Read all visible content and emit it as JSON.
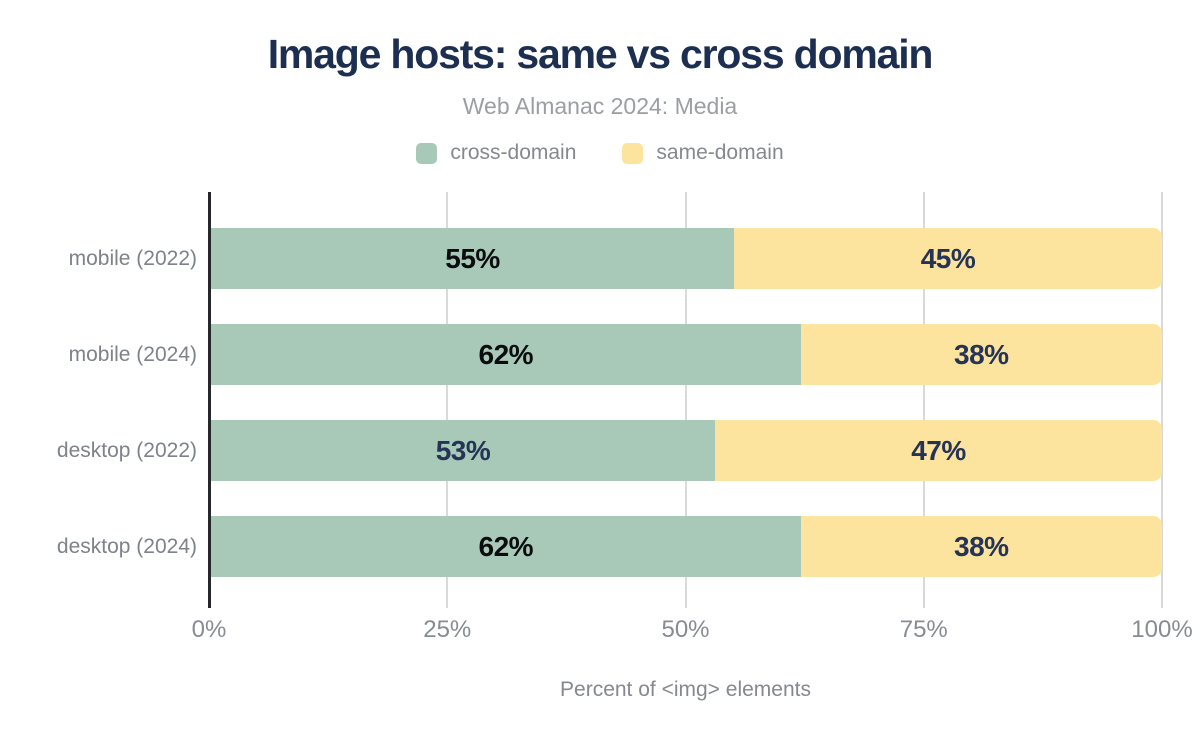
{
  "title": "Image hosts: same vs cross domain",
  "subtitle": "Web Almanac 2024: Media",
  "colors": {
    "title_navy": "#1d2f51",
    "cross_domain_green": "#a8c9b8",
    "same_domain_yellow": "#fce49f",
    "grid_gray": "#d9d9d9",
    "axis_dark": "#26272b",
    "muted_text": "#85898f",
    "value_black": "#0b0c0f",
    "value_navy": "#243356"
  },
  "legend": [
    {
      "label": "cross-domain",
      "color": "#a8c9b8"
    },
    {
      "label": "same-domain",
      "color": "#fce49f"
    }
  ],
  "chart_data": {
    "type": "bar",
    "orientation": "horizontal",
    "stacked": true,
    "title": "Image hosts: same vs cross domain",
    "subtitle": "Web Almanac 2024: Media",
    "categories": [
      "mobile (2022)",
      "mobile (2024)",
      "desktop (2022)",
      "desktop (2024)"
    ],
    "series": [
      {
        "name": "cross-domain",
        "color": "#a8c9b8",
        "values": [
          55,
          62,
          53,
          62
        ]
      },
      {
        "name": "same-domain",
        "color": "#fce49f",
        "values": [
          45,
          38,
          47,
          38
        ]
      }
    ],
    "value_label_suffix": "%",
    "value_label_colors": [
      [
        "#0b0c0f",
        "#243356"
      ],
      [
        "#0b0c0f",
        "#243356"
      ],
      [
        "#243356",
        "#243356"
      ],
      [
        "#0b0c0f",
        "#243356"
      ]
    ],
    "xlabel": "Percent of <img> elements",
    "x_ticks": [
      "0%",
      "25%",
      "50%",
      "75%",
      "100%"
    ],
    "x_tick_positions": [
      0,
      25,
      50,
      75,
      100
    ],
    "xlim": [
      0,
      100
    ],
    "grid": true,
    "legend_position": "top"
  }
}
